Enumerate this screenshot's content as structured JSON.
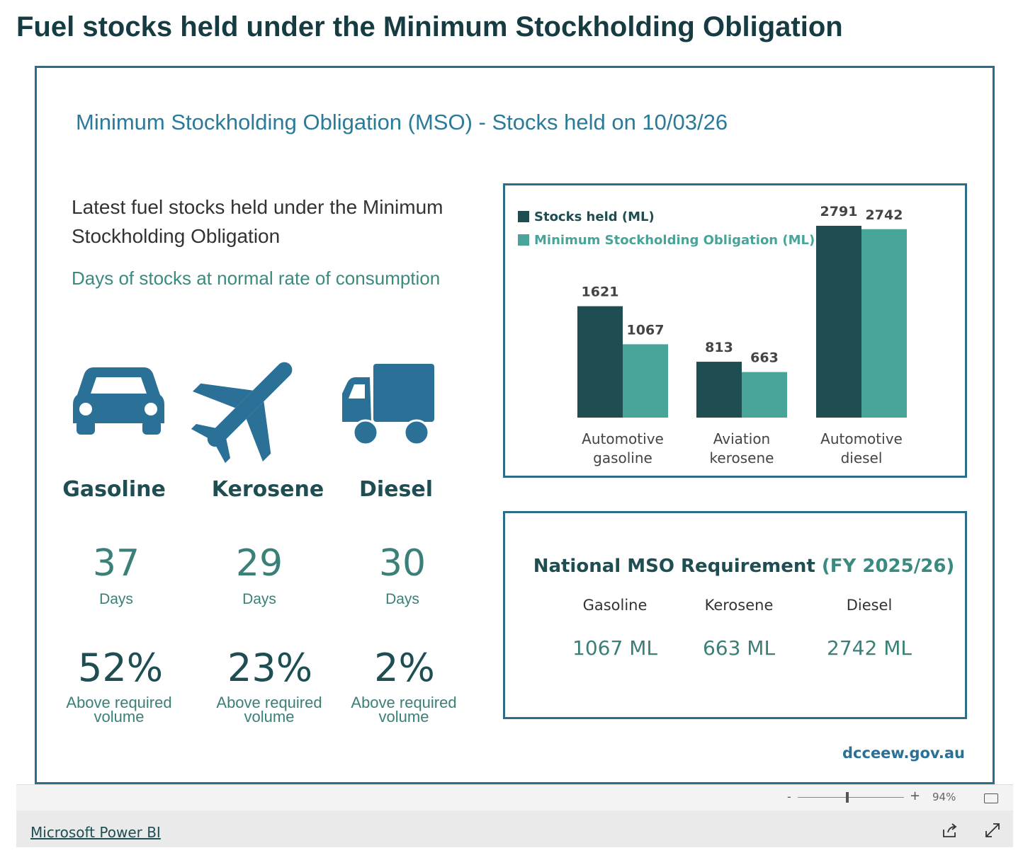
{
  "header": {
    "title": "Fuel stocks held under the Minimum Stockholding Obligation"
  },
  "report": {
    "title": "Minimum Stockholding Obligation (MSO) - Stocks held on 10/03/26",
    "heading": "Latest fuel stocks held under the Minimum Stockholding Obligation",
    "caption": "Days of stocks at normal rate of consumption",
    "fuels": [
      {
        "name": "Gasoline",
        "days": 37,
        "days_unit": "Days",
        "above": "52%",
        "above_text": "Above required volume"
      },
      {
        "name": "Kerosene",
        "days": 29,
        "days_unit": "Days",
        "above": "23%",
        "above_text": "Above required volume"
      },
      {
        "name": "Diesel",
        "days": 30,
        "days_unit": "Days",
        "above": "2%",
        "above_text": "Above required volume"
      }
    ],
    "requirement": {
      "title": "National MSO Requirement",
      "period": "(FY 2025/26)",
      "items": [
        {
          "name": "Gasoline",
          "volume": "1067 ML"
        },
        {
          "name": "Kerosene",
          "volume": "663 ML"
        },
        {
          "name": "Diesel",
          "volume": "2742 ML"
        }
      ]
    },
    "source": "dcceew.gov.au"
  },
  "chart_data": {
    "type": "bar",
    "categories": [
      "Automotive gasoline",
      "Aviation kerosene",
      "Automotive diesel"
    ],
    "series": [
      {
        "name": "Stocks held (ML)",
        "color": "#1e4d52",
        "values": [
          1621,
          813,
          2791
        ]
      },
      {
        "name": "Minimum Stockholding Obligation (ML)",
        "color": "#48a398",
        "values": [
          1067,
          663,
          2742
        ]
      }
    ],
    "legend": "top-left",
    "value_labels": true
  },
  "footer": {
    "zoom_out": "-",
    "zoom_in": "+",
    "zoom": "94%",
    "brand": "Microsoft Power BI"
  }
}
